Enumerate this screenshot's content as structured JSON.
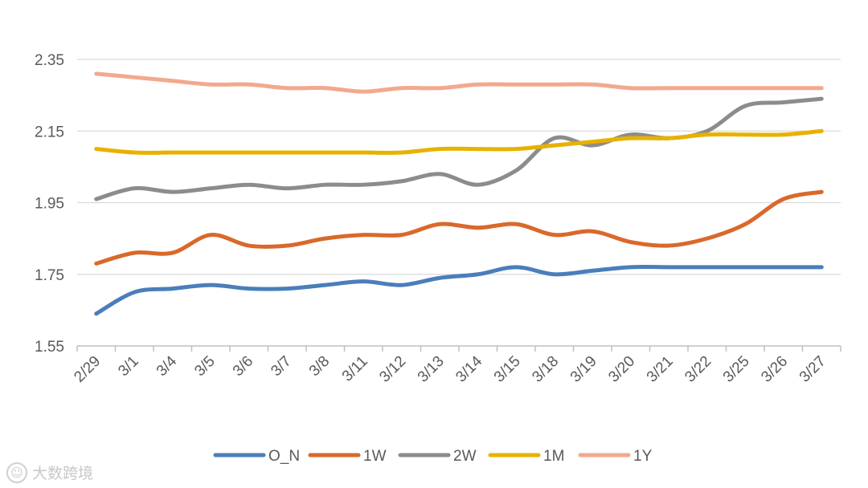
{
  "chart_data": {
    "type": "line",
    "title": "",
    "xlabel": "",
    "ylabel": "",
    "ylim": [
      1.55,
      2.35
    ],
    "yticks": [
      1.55,
      1.75,
      1.95,
      2.15,
      2.35
    ],
    "ytick_labels": [
      "1.55",
      "1.75",
      "1.95",
      "2.15",
      "2.35"
    ],
    "categories": [
      "2/29",
      "3/1",
      "3/4",
      "3/5",
      "3/6",
      "3/7",
      "3/8",
      "3/11",
      "3/12",
      "3/13",
      "3/14",
      "3/15",
      "3/18",
      "3/19",
      "3/20",
      "3/21",
      "3/22",
      "3/25",
      "3/26",
      "3/27"
    ],
    "grid": true,
    "legend_position": "bottom",
    "series": [
      {
        "name": "O_N",
        "color": "#4a7ebb",
        "values": [
          1.64,
          1.7,
          1.71,
          1.72,
          1.71,
          1.71,
          1.72,
          1.73,
          1.72,
          1.74,
          1.75,
          1.77,
          1.75,
          1.76,
          1.77,
          1.77,
          1.77,
          1.77,
          1.77,
          1.77
        ]
      },
      {
        "name": "1W",
        "color": "#d9692b",
        "values": [
          1.78,
          1.81,
          1.81,
          1.86,
          1.83,
          1.83,
          1.85,
          1.86,
          1.86,
          1.89,
          1.88,
          1.89,
          1.86,
          1.87,
          1.84,
          1.83,
          1.85,
          1.89,
          1.96,
          1.98
        ]
      },
      {
        "name": "2W",
        "color": "#8c8c8c",
        "values": [
          1.96,
          1.99,
          1.98,
          1.99,
          2.0,
          1.99,
          2.0,
          2.0,
          2.01,
          2.03,
          2.0,
          2.04,
          2.13,
          2.11,
          2.14,
          2.13,
          2.15,
          2.22,
          2.23,
          2.24
        ]
      },
      {
        "name": "1M",
        "color": "#e8b100",
        "values": [
          2.1,
          2.09,
          2.09,
          2.09,
          2.09,
          2.09,
          2.09,
          2.09,
          2.09,
          2.1,
          2.1,
          2.1,
          2.11,
          2.12,
          2.13,
          2.13,
          2.14,
          2.14,
          2.14,
          2.15
        ]
      },
      {
        "name": "1Y",
        "color": "#f2a98e",
        "values": [
          2.31,
          2.3,
          2.29,
          2.28,
          2.28,
          2.27,
          2.27,
          2.26,
          2.27,
          2.27,
          2.28,
          2.28,
          2.28,
          2.28,
          2.27,
          2.27,
          2.27,
          2.27,
          2.27,
          2.27
        ]
      }
    ]
  },
  "watermark": {
    "logo": "☺",
    "text": "大数跨境"
  }
}
